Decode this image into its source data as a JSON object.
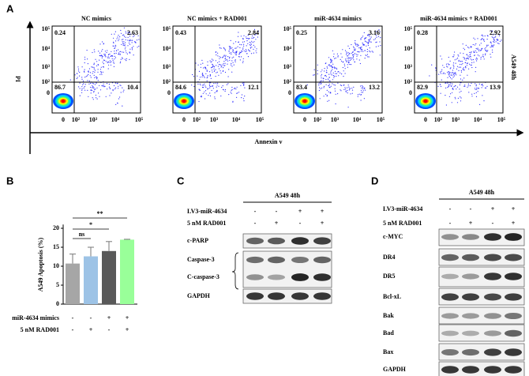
{
  "panel_labels": [
    "A",
    "B",
    "C",
    "D"
  ],
  "flow": {
    "y_label": "PI",
    "x_label": "Annexin v",
    "side_label": "A549 48h",
    "yticks": [
      "10⁵",
      "10⁴",
      "10³",
      "10²",
      "0"
    ],
    "xticks": [
      "0",
      "10²",
      "10³",
      "10⁴",
      "10⁵"
    ],
    "plots": [
      {
        "title": "NC mimics",
        "quadrants": [
          0.24,
          2.63,
          86.7,
          10.4
        ]
      },
      {
        "title": "NC mimics + RAD001",
        "quadrants": [
          0.43,
          2.84,
          84.6,
          12.1
        ]
      },
      {
        "title": "miR-4634 mimics",
        "quadrants": [
          0.25,
          3.16,
          83.4,
          13.2
        ]
      },
      {
        "title": "miR-4634 mimics + RAD001",
        "quadrants": [
          0.28,
          2.92,
          82.9,
          13.9
        ]
      }
    ]
  },
  "chart_data": {
    "type": "bar",
    "y_label": "A549 Apoptosis (%)",
    "values": [
      10.7,
      12.6,
      14.0,
      17.0
    ],
    "errors": [
      2.5,
      2.4,
      2.5,
      0.1
    ],
    "colors": [
      "#a6a6a6",
      "#9dc3e6",
      "#595959",
      "#99ff99"
    ],
    "ylim": [
      0,
      21
    ],
    "yticks": [
      0,
      5,
      10,
      15,
      20
    ],
    "annotations": [
      {
        "text": "ns",
        "from": 0,
        "to": 1
      },
      {
        "text": "*",
        "from": 0,
        "to": 2
      },
      {
        "text": "**",
        "from": 0,
        "to": 3
      }
    ],
    "conditions": [
      {
        "label": "miR-4634 mimics",
        "signs": [
          "-",
          "-",
          "+",
          "+"
        ]
      },
      {
        "label": "5 nM RAD001",
        "signs": [
          "-",
          "+",
          "-",
          "+"
        ]
      }
    ]
  },
  "blot_c": {
    "title": "A549 48h",
    "conditions": [
      {
        "label": "LV3-miR-4634",
        "signs": [
          "-",
          "-",
          "+",
          "+"
        ]
      },
      {
        "label": "5 nM RAD001",
        "signs": [
          "-",
          "+",
          "-",
          "+"
        ]
      }
    ],
    "bands": [
      "c-PARP",
      "Caspase-3",
      "C-caspase-3",
      "GAPDH"
    ]
  },
  "blot_d": {
    "title": "A549 48h",
    "conditions": [
      {
        "label": "LV3-miR-4634",
        "signs": [
          "-",
          "-",
          "+",
          "+"
        ]
      },
      {
        "label": "5 nM RAD001",
        "signs": [
          "-",
          "+",
          "-",
          "+"
        ]
      }
    ],
    "bands": [
      "c-MYC",
      "DR4",
      "DR5",
      "Bcl-xL",
      "Bak",
      "Bad",
      "Bax",
      "GAPDH"
    ]
  }
}
